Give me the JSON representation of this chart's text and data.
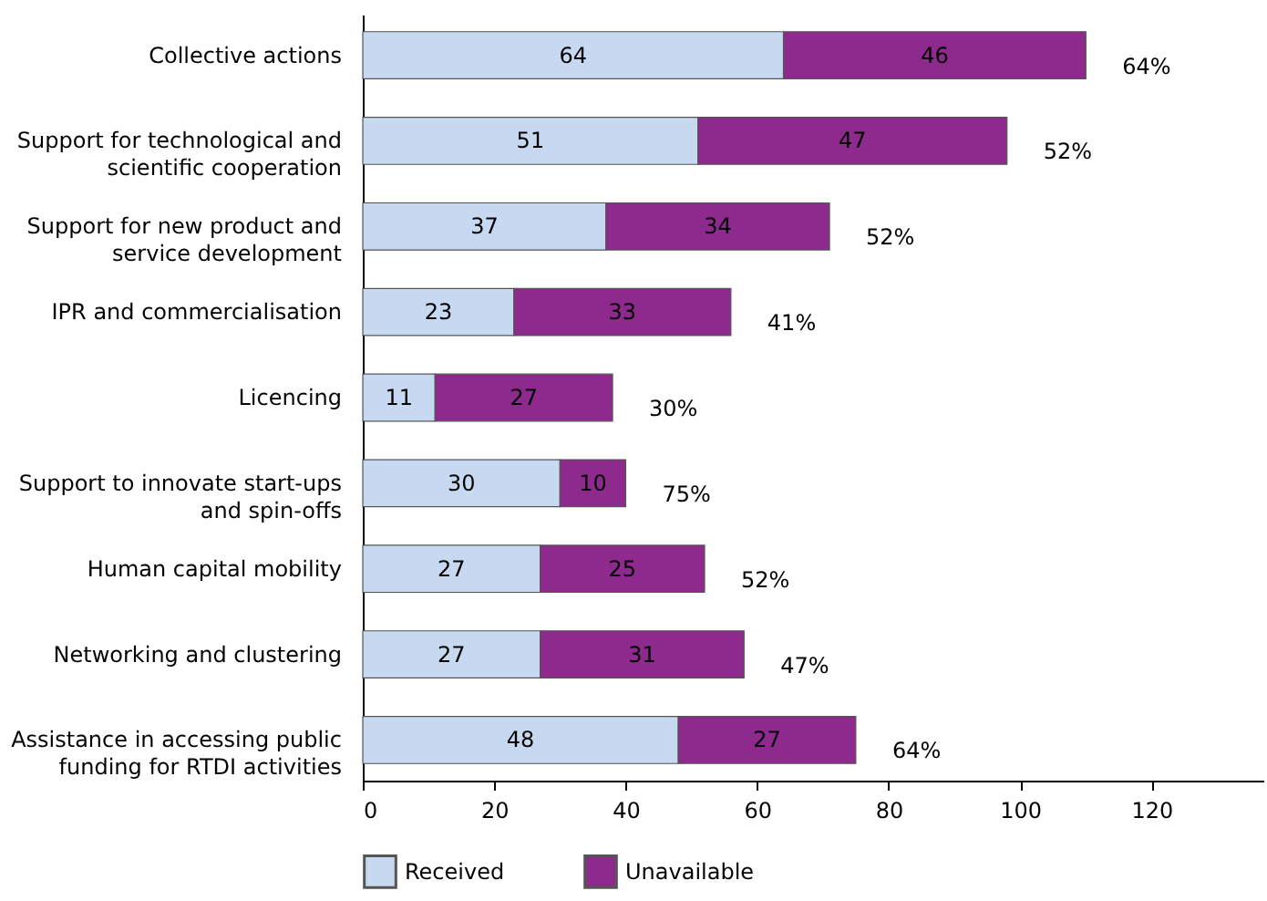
{
  "chart_data": {
    "type": "bar",
    "orientation": "horizontal",
    "stacked": true,
    "data_labels": true,
    "legend": "bottom",
    "grid": false,
    "categories": [
      "Collective actions",
      "Support for technological and scientific cooperation",
      "Support for new product and service development",
      "IPR and commercialisation",
      "Licencing",
      "Support to innovate start-ups and spin-offs",
      "Human capital mobility",
      "Networking and clustering",
      "Assistance in accessing public funding for RTDI activities"
    ],
    "series": [
      {
        "name": "Received",
        "color": "#c6d9f1",
        "values": [
          64,
          51,
          37,
          23,
          11,
          30,
          27,
          27,
          48
        ]
      },
      {
        "name": "Unavailable",
        "color": "#8e2a8e",
        "values": [
          46,
          47,
          34,
          33,
          27,
          10,
          25,
          31,
          27
        ]
      }
    ],
    "xlim": [
      0,
      137
    ],
    "xticks": [
      0,
      20,
      40,
      60,
      80,
      100,
      120
    ],
    "annotations": [
      "64%",
      "52%",
      "52%",
      "41%",
      "30%",
      "75%",
      "52%",
      "47%",
      "64%"
    ]
  }
}
